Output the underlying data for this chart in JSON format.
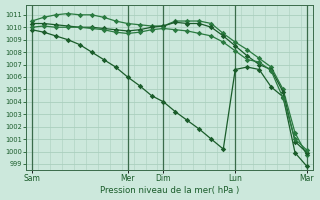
{
  "bg_color": "#cce8dc",
  "grid_color": "#aacfbe",
  "line_color_dark": "#1a5c2a",
  "line_color_med": "#2a7a40",
  "xlabel": "Pression niveau de la mer( hPa )",
  "ylim": [
    998.5,
    1011.8
  ],
  "yticks": [
    999,
    1000,
    1001,
    1002,
    1003,
    1004,
    1005,
    1006,
    1007,
    1008,
    1009,
    1010,
    1011
  ],
  "day_labels": [
    "Sam",
    "Mer",
    "Dim",
    "Lun",
    "Mar"
  ],
  "day_positions": [
    0,
    8,
    11,
    17,
    23
  ],
  "n_points": 24,
  "series_A": [
    1009.8,
    1009.6,
    1009.3,
    1009.0,
    1008.6,
    1008.0,
    1007.4,
    1006.8,
    1006.0,
    1005.3,
    1004.5,
    1004.0,
    1003.2,
    1002.5,
    1001.8,
    1001.0,
    1000.2,
    1006.6,
    1006.8,
    1006.6,
    1005.2,
    1004.4,
    999.9,
    998.8
  ],
  "series_B": [
    1010.5,
    1010.8,
    1011.0,
    1011.1,
    1011.0,
    1011.0,
    1010.8,
    1010.5,
    1010.3,
    1010.2,
    1010.1,
    1010.1,
    1010.5,
    1010.5,
    1010.5,
    1010.3,
    1009.5,
    1008.8,
    1008.2,
    1007.5,
    1006.8,
    1005.0,
    1001.5,
    999.7
  ],
  "series_C": [
    1010.3,
    1010.3,
    1010.2,
    1010.1,
    1010.0,
    1010.0,
    1009.9,
    1009.8,
    1009.7,
    1009.8,
    1010.0,
    1010.1,
    1010.4,
    1010.3,
    1010.3,
    1010.0,
    1009.3,
    1008.5,
    1007.7,
    1007.0,
    1006.6,
    1004.8,
    1000.8,
    999.9
  ],
  "series_D": [
    1010.0,
    1010.1,
    1010.0,
    1010.0,
    1010.0,
    1009.9,
    1009.8,
    1009.6,
    1009.5,
    1009.6,
    1009.8,
    1009.9,
    1009.8,
    1009.7,
    1009.5,
    1009.3,
    1008.8,
    1008.1,
    1007.4,
    1007.2,
    1006.5,
    1004.3,
    1001.0,
    1000.1
  ]
}
